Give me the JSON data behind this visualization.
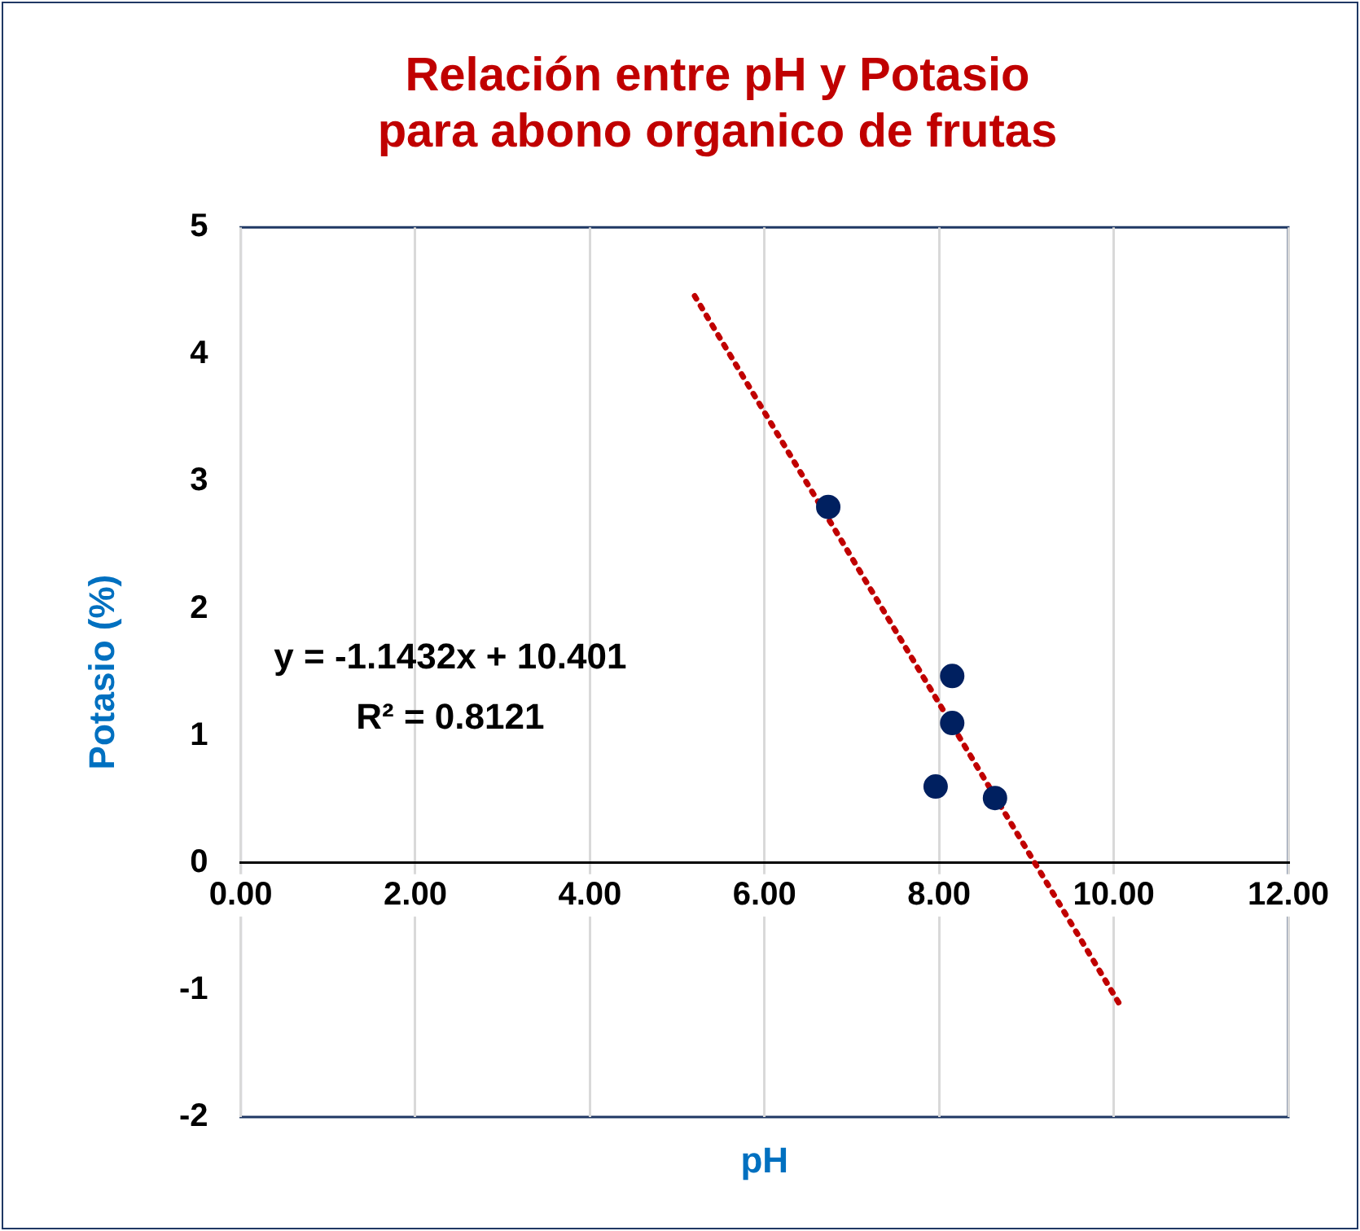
{
  "chart_data": {
    "type": "scatter",
    "title": "Relación entre pH y Potasio\npara abono organico de frutas",
    "xlabel": "pH",
    "ylabel": "Potasio (%)",
    "xlim": [
      0,
      12
    ],
    "xticks": [
      {
        "value": 0,
        "label": "0.00"
      },
      {
        "value": 2,
        "label": "2.00"
      },
      {
        "value": 4,
        "label": "4.00"
      },
      {
        "value": 6,
        "label": "6.00"
      },
      {
        "value": 8,
        "label": "8.00"
      },
      {
        "value": 10,
        "label": "10.00"
      },
      {
        "value": 12,
        "label": "12.00"
      }
    ],
    "ylim": [
      -2,
      5
    ],
    "yticks": [
      -2,
      -1,
      0,
      1,
      2,
      3,
      4,
      5
    ],
    "grid": "x",
    "legend": false,
    "marker": "circle",
    "annotations": [
      "y = -1.1432x + 10.401",
      "R² = 0.8121"
    ],
    "series": [
      {
        "color": "#002060",
        "x": [
          6.73,
          8.15,
          8.15,
          7.96,
          8.64
        ],
        "values": [
          2.8,
          1.47,
          1.1,
          0.6,
          0.51
        ]
      },
      {
        "type": "line",
        "color": "#c00000",
        "line_style": "dotted",
        "marker": "none",
        "x": [
          5.2,
          10.1
        ],
        "values": [
          4.46,
          -1.15
        ]
      }
    ]
  }
}
